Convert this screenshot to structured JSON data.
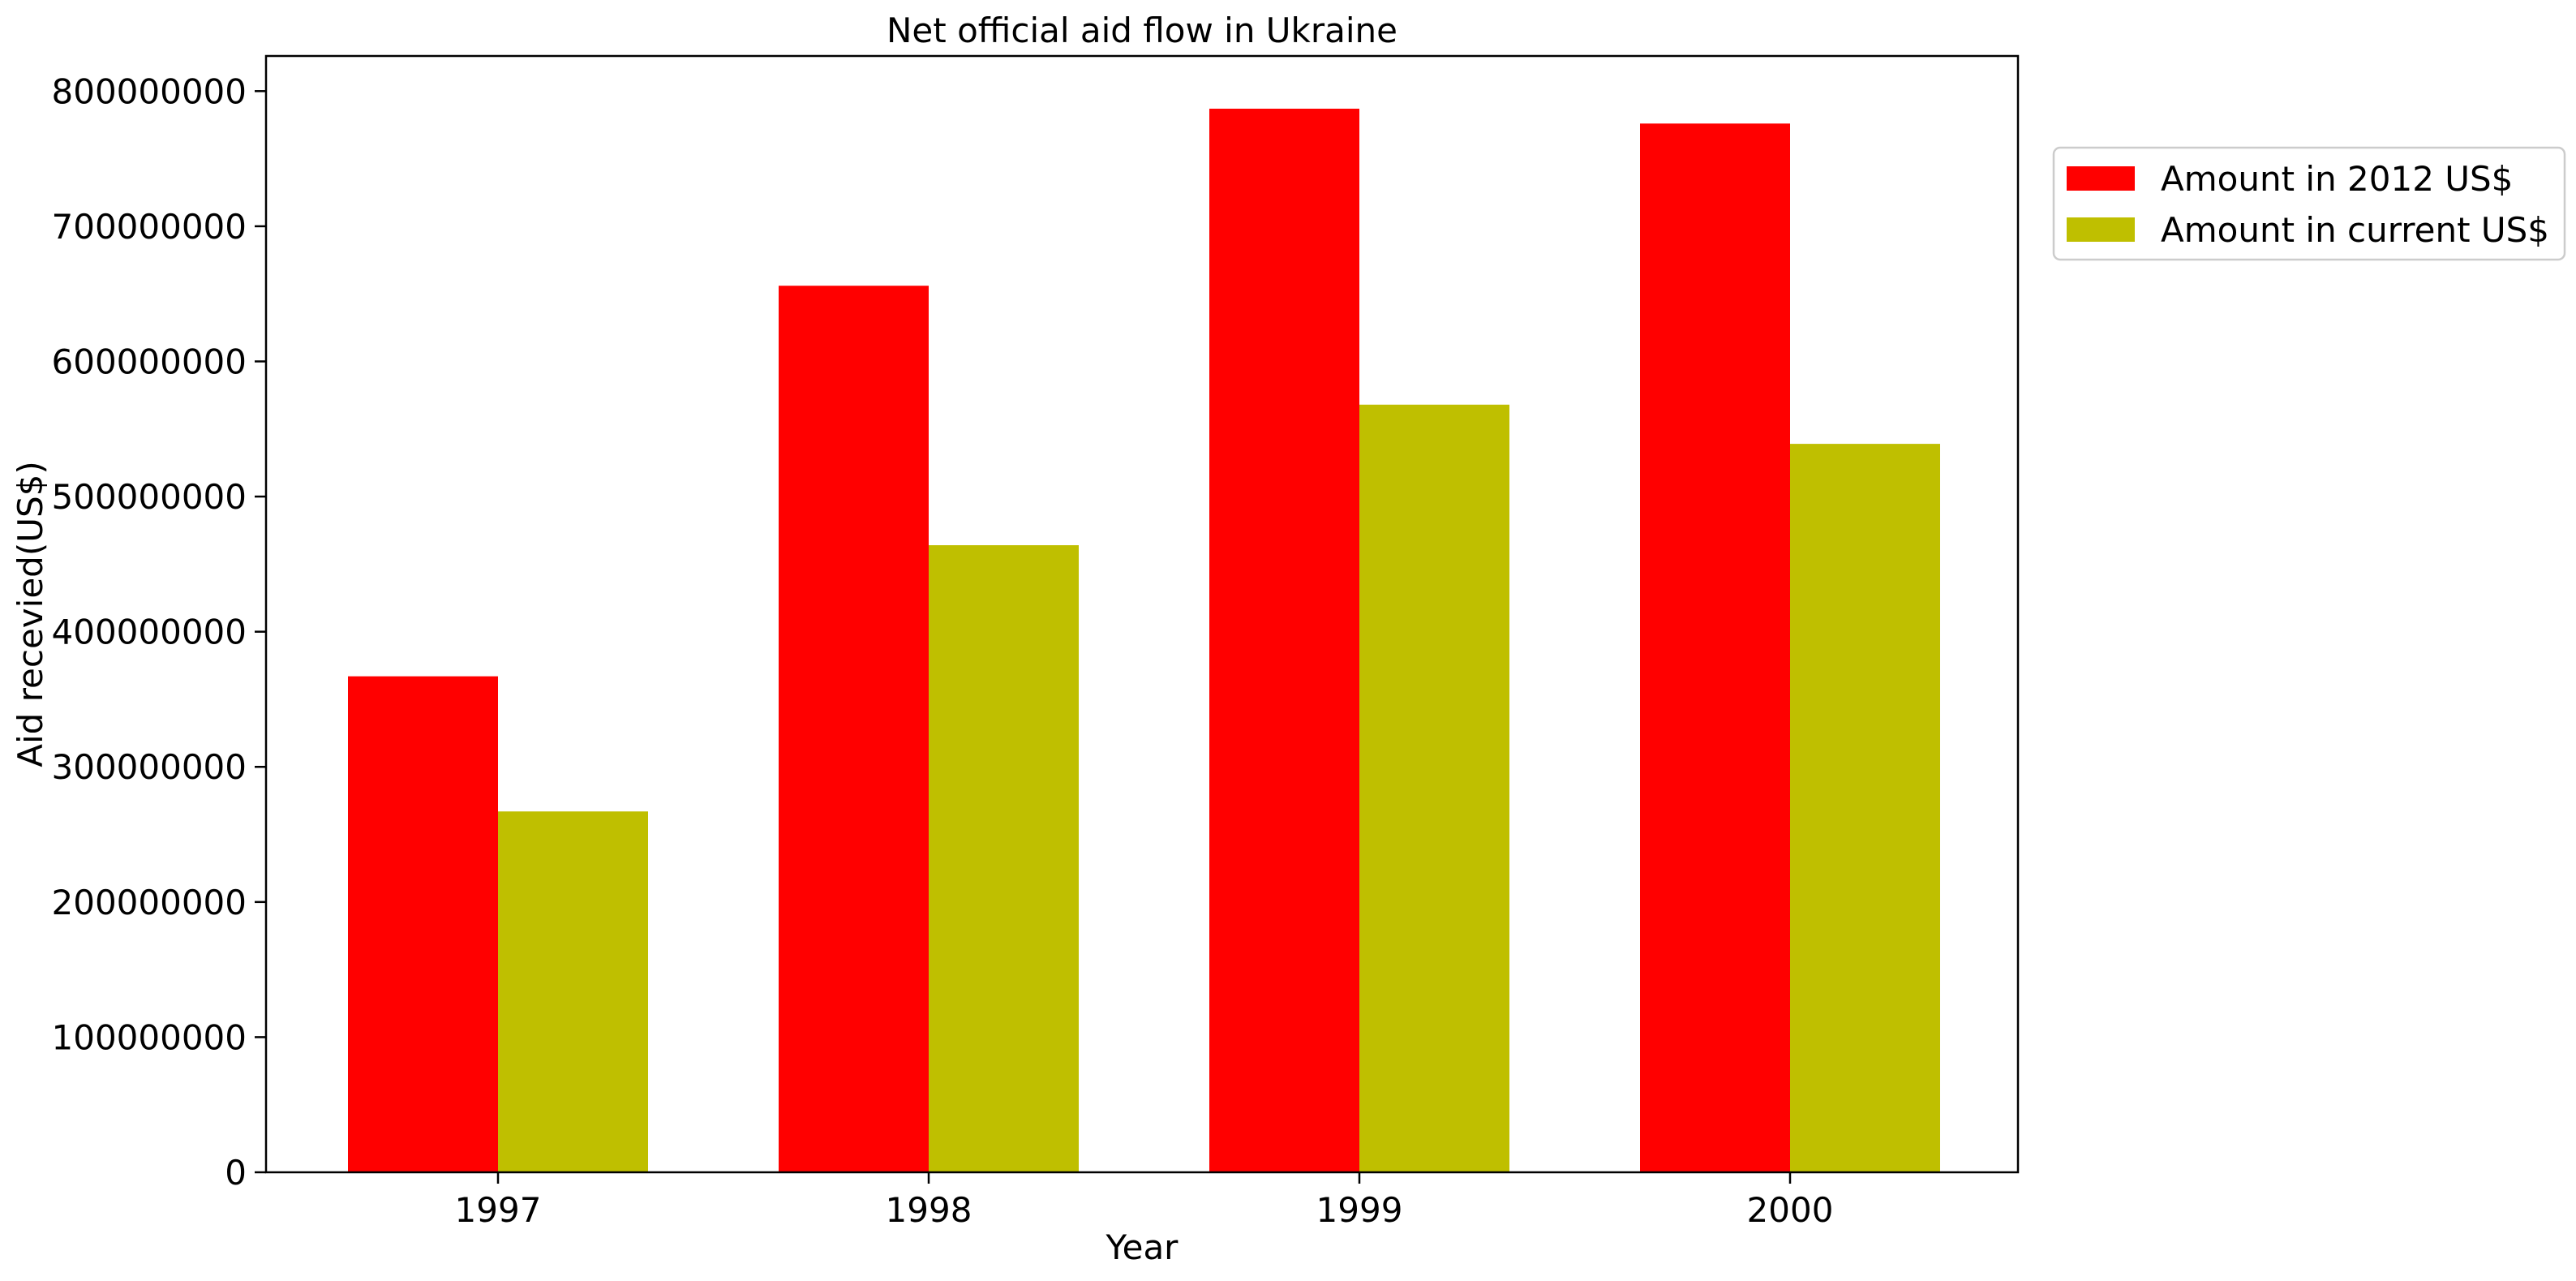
{
  "chart_data": {
    "type": "bar",
    "title": "Net official aid flow in Ukraine",
    "xlabel": "Year",
    "ylabel": "Aid recevied(US$)",
    "categories": [
      "1997",
      "1998",
      "1999",
      "2000"
    ],
    "series": [
      {
        "name": "Amount in 2012 US$",
        "color": "#ff0000",
        "values": [
          367000000,
          656000000,
          787000000,
          776000000
        ]
      },
      {
        "name": "Amount in current US$",
        "color": "#bfbf00",
        "values": [
          267000000,
          464000000,
          568000000,
          539000000
        ]
      }
    ],
    "ylim": [
      0,
      826000000
    ],
    "yticks": [
      0,
      100000000,
      200000000,
      300000000,
      400000000,
      500000000,
      600000000,
      700000000,
      800000000
    ],
    "ytick_labels": [
      "0",
      "100000000",
      "200000000",
      "300000000",
      "400000000",
      "500000000",
      "600000000",
      "700000000",
      "800000000"
    ],
    "legend_position": "upper-right-outside",
    "grid": false
  }
}
